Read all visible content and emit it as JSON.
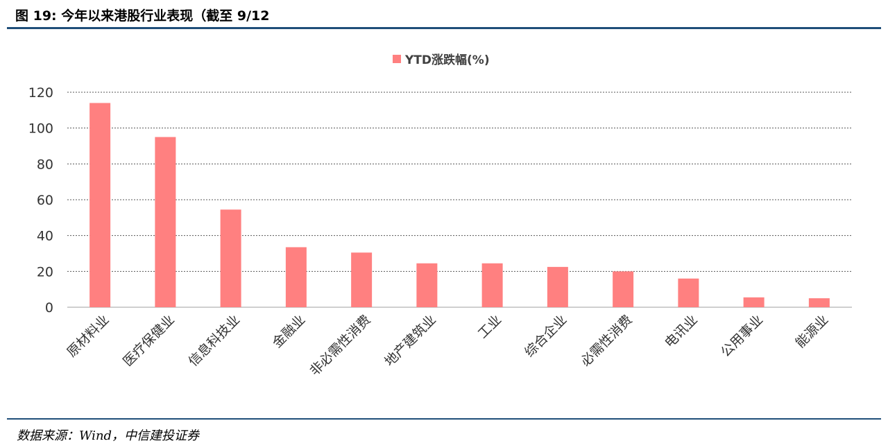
{
  "figure": {
    "title": "图 19:  今年以来港股行业表现（截至 9/12",
    "source": "数据来源：Wind，中信建投证券"
  },
  "colors": {
    "bar": "#ff8080",
    "rule": "#1f4e79",
    "grid": "#555555",
    "axis": "#bfbfbf"
  },
  "chart_data": {
    "type": "bar",
    "categories": [
      "原材料业",
      "医疗保健业",
      "信息科技业",
      "金融业",
      "非必需性消费",
      "地产建筑业",
      "工业",
      "综合企业",
      "必需性消费",
      "电讯业",
      "公用事业",
      "能源业"
    ],
    "series": [
      {
        "name": "YTD涨跌幅(%)",
        "values": [
          114,
          95,
          54.5,
          33.5,
          30.5,
          24.5,
          24.5,
          22.5,
          20,
          16,
          5.5,
          5
        ]
      }
    ],
    "yticks": [
      0,
      20,
      40,
      60,
      80,
      100,
      120
    ],
    "ylim": [
      0,
      120
    ],
    "grid": true,
    "legend_position": "top-center"
  }
}
